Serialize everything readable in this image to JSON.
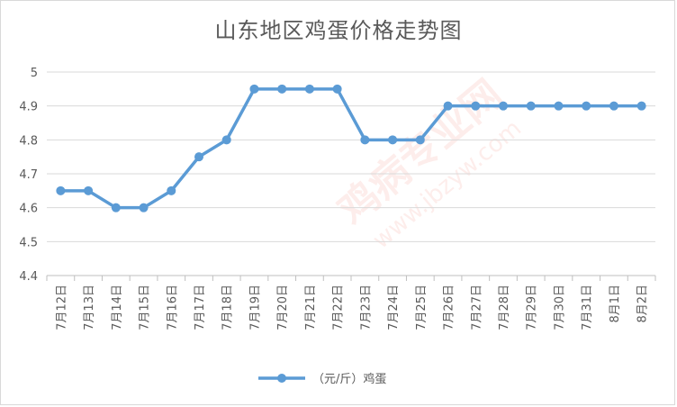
{
  "chart_data": {
    "type": "line",
    "title": "山东地区鸡蛋价格走势图",
    "categories": [
      "7月12日",
      "7月13日",
      "7月14日",
      "7月15日",
      "7月16日",
      "7月17日",
      "7月18日",
      "7月19日",
      "7月20日",
      "7月21日",
      "7月22日",
      "7月23日",
      "7月24日",
      "7月25日",
      "7月26日",
      "7月27日",
      "7月28日",
      "7月29日",
      "7月30日",
      "7月31日",
      "8月1日",
      "8月2日"
    ],
    "series": [
      {
        "name": "（元/斤）鸡蛋",
        "values": [
          4.65,
          4.65,
          4.6,
          4.6,
          4.65,
          4.75,
          4.8,
          4.95,
          4.95,
          4.95,
          4.95,
          4.8,
          4.8,
          4.8,
          4.9,
          4.9,
          4.9,
          4.9,
          4.9,
          4.9,
          4.9,
          4.9
        ]
      }
    ],
    "ylim": [
      4.4,
      5.0
    ],
    "yticks": [
      "4.4",
      "4.5",
      "4.6",
      "4.7",
      "4.8",
      "4.9",
      "5"
    ],
    "xlabel": "",
    "ylabel": "",
    "grid": true,
    "legend": "bottom",
    "colors": {
      "line": "#5b9bd5",
      "grid": "#d9d9d9",
      "axis": "#bfbfbf",
      "text": "#595959"
    }
  },
  "watermark": {
    "text": "鸡病专业网",
    "url": "www.jbzyw.com"
  }
}
